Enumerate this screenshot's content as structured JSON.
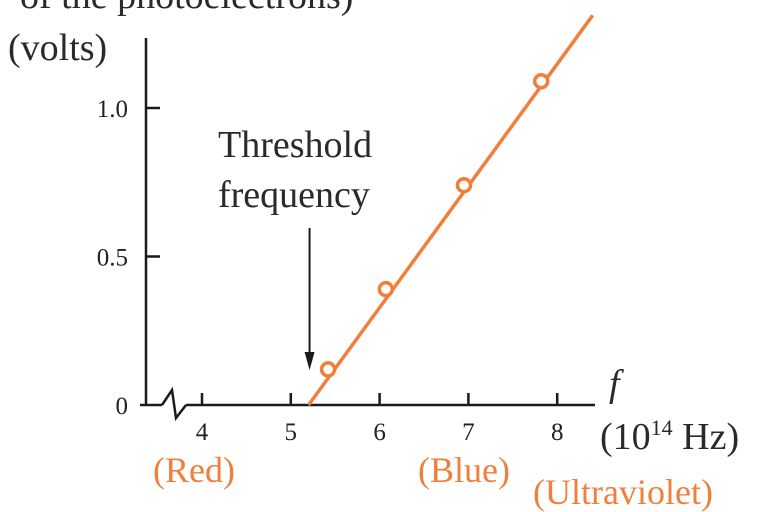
{
  "chart_data": {
    "type": "scatter",
    "title_partial": "of the photoelectrons)",
    "ylabel": "(volts)",
    "xlabel_symbol": "f",
    "xlabel_unit_prefix": "(10",
    "xlabel_unit_exp": "14",
    "xlabel_unit_suffix": " Hz)",
    "xlim": [
      3.4,
      8.5
    ],
    "ylim": [
      0,
      1.35
    ],
    "x_ticks": [
      4,
      5,
      6,
      7,
      8
    ],
    "x_tick_labels": [
      "4",
      "5",
      "6",
      "7",
      "8"
    ],
    "y_ticks": [
      0,
      0.5,
      1.0
    ],
    "y_tick_labels": [
      "0",
      "0.5",
      "1.0"
    ],
    "axis_break": true,
    "series": [
      {
        "points": [
          {
            "x": 5.42,
            "y": 0.12
          },
          {
            "x": 6.07,
            "y": 0.39
          },
          {
            "x": 6.95,
            "y": 0.74
          },
          {
            "x": 7.82,
            "y": 1.09
          }
        ],
        "fit_line": {
          "x_start": 5.2,
          "y_start": 0.0,
          "slope": 0.41
        }
      }
    ],
    "annotations": {
      "threshold_line1": "Threshold",
      "threshold_line2": "frequency",
      "threshold_x": 5.2,
      "region_red": "(Red)",
      "region_blue": "(Blue)",
      "region_uv": "(Ultraviolet)"
    },
    "colors": {
      "data": "#f07f3c",
      "axis": "#1a1a1a",
      "text": "#2a2a2a"
    }
  }
}
